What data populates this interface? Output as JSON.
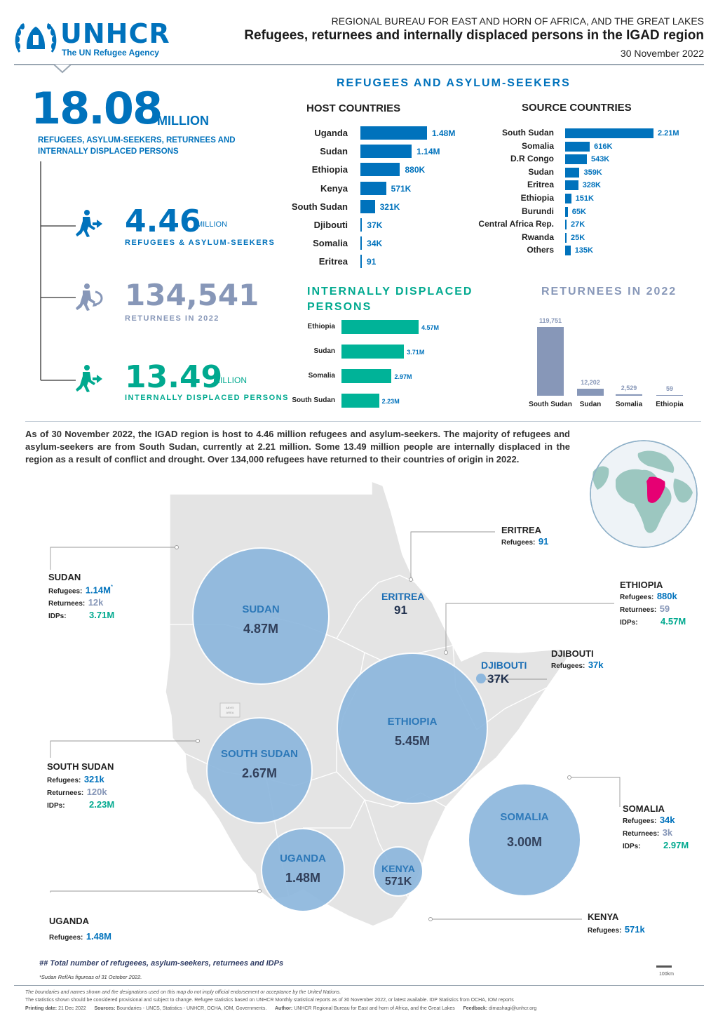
{
  "header": {
    "logo_name": "UNHCR",
    "logo_tagline": "The UN Refugee Agency",
    "bureau": "REGIONAL BUREAU FOR EAST AND HORN OF AFRICA, AND THE GREAT LAKES",
    "title": "Refugees, returnees and internally displaced persons in the IGAD region",
    "date": "30 November 2022"
  },
  "totals": {
    "total_value": "18.08",
    "total_unit": "MILLION",
    "total_label": "REFUGEES, ASYLUM-SEEKERS, RETURNEES AND INTERNALLY DISPLACED PERSONS",
    "refugees_value": "4.46",
    "refugees_unit": "MILLION",
    "refugees_label": "REFUGEES & ASYLUM-SEEKERS",
    "returnees_value": "134,541",
    "returnees_label": "RETURNEES IN 2022",
    "idps_value": "13.49",
    "idps_unit": "MILLION",
    "idps_label": "INTERNALLY DISPLACED PERSONS"
  },
  "colors": {
    "unhcr_blue": "#0072bc",
    "idp_teal": "#00b398",
    "returnee_grey": "#8797b8",
    "bubble_blue": "#8db7dd"
  },
  "refugees_section": {
    "title": "REFUGEES AND ASYLUM-SEEKERS",
    "host_title": "HOST COUNTRIES",
    "source_title": "SOURCE COUNTRIES"
  },
  "chart_data": [
    {
      "type": "bar",
      "title": "HOST COUNTRIES",
      "categories": [
        "Uganda",
        "Sudan",
        "Ethiopia",
        "Kenya",
        "South Sudan",
        "Djibouti",
        "Somalia",
        "Eritrea"
      ],
      "values": [
        1480000,
        1140000,
        880000,
        571000,
        321000,
        37000,
        34000,
        91
      ],
      "labels": [
        "1.48M",
        "1.14M",
        "880K",
        "571K",
        "321K",
        "37K",
        "34K",
        "91"
      ]
    },
    {
      "type": "bar",
      "title": "SOURCE COUNTRIES",
      "categories": [
        "South Sudan",
        "Somalia",
        "D.R Congo",
        "Sudan",
        "Eritrea",
        "Ethiopia",
        "Burundi",
        "Central Africa Rep.",
        "Rwanda",
        "Others"
      ],
      "values": [
        2210000,
        616000,
        543000,
        359000,
        328000,
        151000,
        65000,
        27000,
        25000,
        135000
      ],
      "labels": [
        "2.21M",
        "616K",
        "543K",
        "359K",
        "328K",
        "151K",
        "65K",
        "27K",
        "25K",
        "135K"
      ]
    },
    {
      "type": "bar",
      "title": "INTERNALLY DISPLACED PERSONS",
      "categories": [
        "Ethiopia",
        "Sudan",
        "Somalia",
        "South Sudan"
      ],
      "values": [
        4570000,
        3710000,
        2970000,
        2230000
      ],
      "labels": [
        "4.57M",
        "3.71M",
        "2.97M",
        "2.23M"
      ]
    },
    {
      "type": "bar",
      "title": "RETURNEES IN 2022",
      "categories": [
        "South Sudan",
        "Sudan",
        "Somalia",
        "Ethiopia"
      ],
      "values": [
        119751,
        12202,
        2529,
        59
      ],
      "labels": [
        "119,751",
        "12,202",
        "2,529",
        "59"
      ]
    }
  ],
  "idp_title_line1": "INTERNALLY DISPLACED",
  "idp_title_line2": "PERSONS",
  "returnees_title": "RETURNEES IN 2022",
  "paragraph": "As of 30 November 2022, the IGAD region is host to 4.46 million refugees and asylum-seekers. The majority of refugees and asylum-seekers are from South Sudan, currently at 2.21 million. Some 13.49 million people are internally displaced in the region as a result of conflict and drought. Over 134,000 refugees have returned to their countries of origin in 2022.",
  "map": {
    "bubbles": [
      {
        "name": "SUDAN",
        "value": "4.87M"
      },
      {
        "name": "ETHIOPIA",
        "value": "5.45M"
      },
      {
        "name": "SOUTH SUDAN",
        "value": "2.67M"
      },
      {
        "name": "SOMALIA",
        "value": "3.00M"
      },
      {
        "name": "UGANDA",
        "value": "1.48M"
      },
      {
        "name": "KENYA",
        "value": "571K"
      },
      {
        "name": "ERITREA",
        "value": "91"
      },
      {
        "name": "DJIBOUTI",
        "value": "37K"
      }
    ],
    "callouts": {
      "sudan": {
        "title": "SUDAN",
        "refugees": "1.14M",
        "refugees_mark": "*",
        "returnees": "12k",
        "idps": "3.71M"
      },
      "eritrea": {
        "title": "ERITREA",
        "refugees": "91"
      },
      "ethiopia": {
        "title": "ETHIOPIA",
        "refugees": "880k",
        "returnees": "59",
        "idps": "4.57M"
      },
      "djibouti": {
        "title": "DJIBOUTI",
        "refugees": "37k"
      },
      "south_sudan": {
        "title": "SOUTH SUDAN",
        "refugees": "321k",
        "returnees": "120k",
        "idps": "2.23M"
      },
      "somalia": {
        "title": "SOMALIA",
        "refugees": "34k",
        "returnees": "3k",
        "idps": "2.97M"
      },
      "uganda": {
        "title": "UGANDA",
        "refugees": "1.48M"
      },
      "kenya": {
        "title": "KENYA",
        "refugees": "571k"
      }
    },
    "key_refugees": "Refugees:",
    "key_returnees": "Returnees:",
    "key_idps": "IDPs:",
    "scale_label": "100km",
    "legend_note": "## Total number of refugeees, asylum-seekers, returnees and IDPs",
    "sudan_note": "*Sudan Ref/As figureas of 31 October 2022."
  },
  "footer": {
    "disclaimer": "The boundaries and names shown and the designations used on this map do not imply official endorsement or acceptance by the United Nations.",
    "stats_note": "The statistics shown should be considered provisional and subject to change. Refugee statistics based on UNHCR Monthly statistical reports as of 30 November 2022, or latest available. IDP Statistics from OCHA, IOM reports",
    "printing_label": "Printing date:",
    "printing_date": "21 Dec 2022",
    "sources_label": "Sources:",
    "sources": "Boundaries - UNCS, Statistics - UNHCR, OCHA, IOM, Governments.",
    "author_label": "Author:",
    "author": "UNHCR Regional Bureau for East and horn of Africa, and the Great Lakes",
    "feedback_label": "Feedback:",
    "feedback": "dimashagi@unhcr.org"
  }
}
